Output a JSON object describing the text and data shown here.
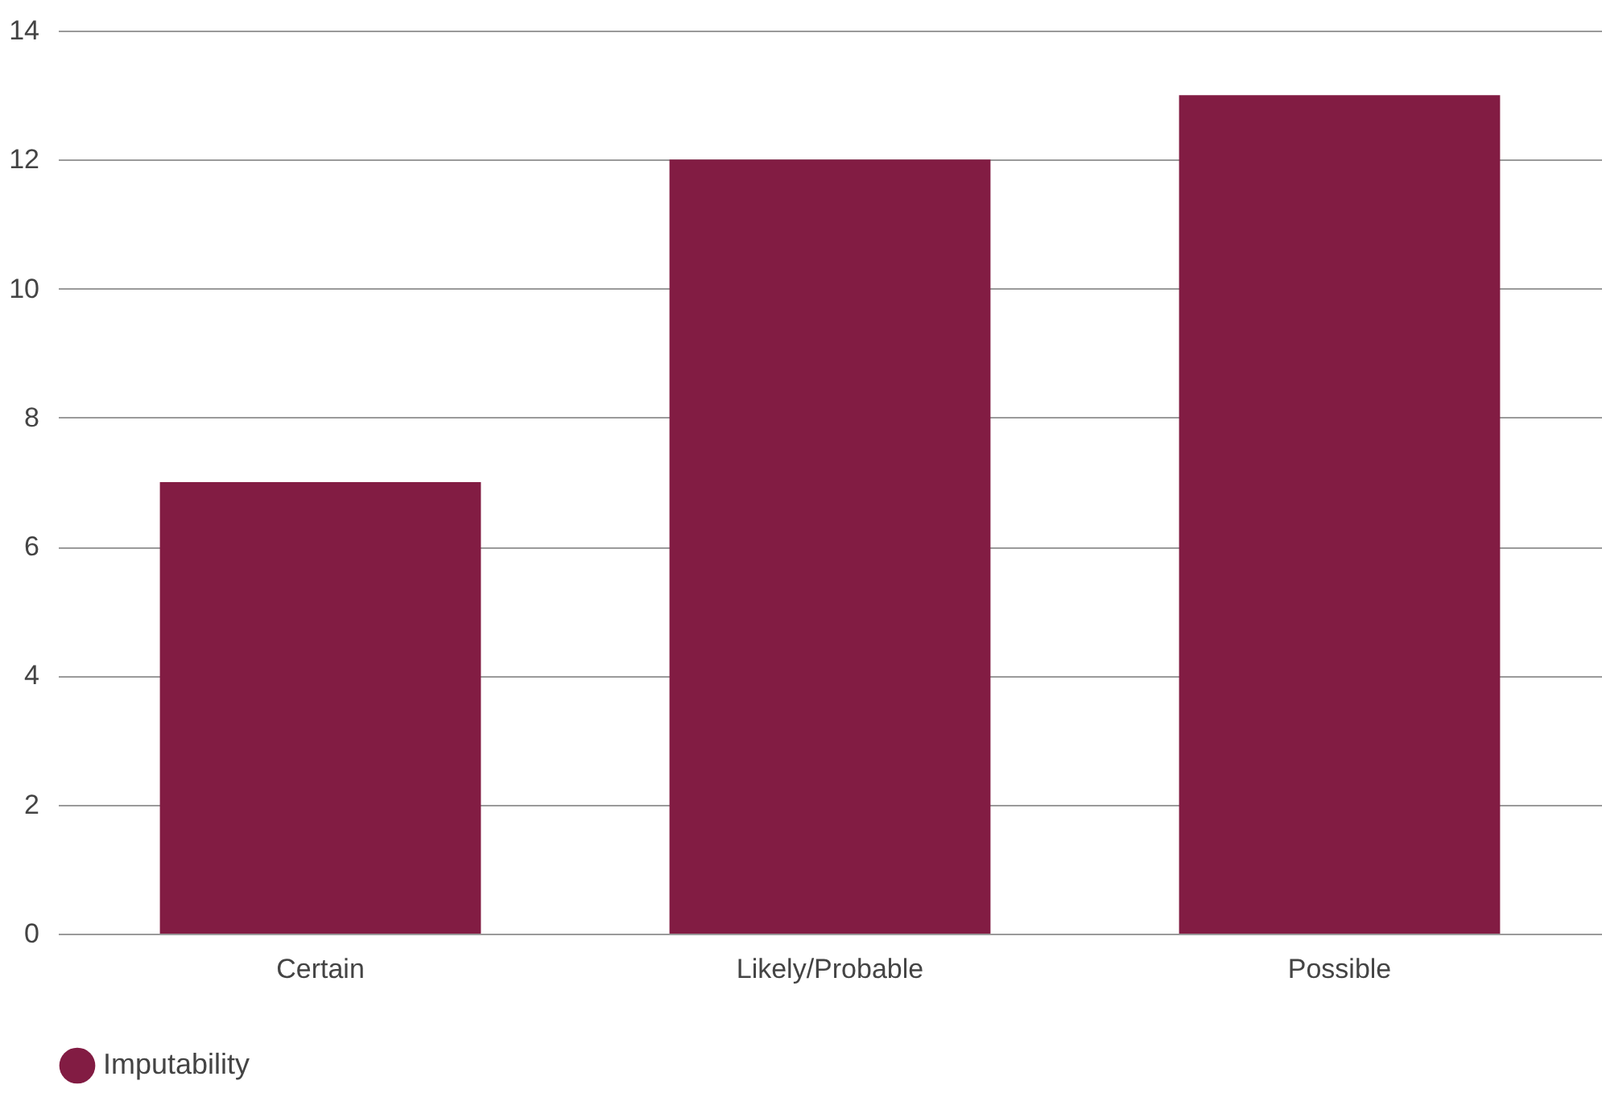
{
  "chart_data": {
    "type": "bar",
    "categories": [
      "Certain",
      "Likely/Probable",
      "Possible"
    ],
    "series": [
      {
        "name": "Imputability",
        "color": "#821c43",
        "values": [
          7,
          12,
          13
        ]
      }
    ],
    "ylim": [
      0,
      14
    ],
    "yticks": [
      0,
      2,
      4,
      6,
      8,
      10,
      12,
      14
    ],
    "grid": "y",
    "legend": "bottom"
  }
}
